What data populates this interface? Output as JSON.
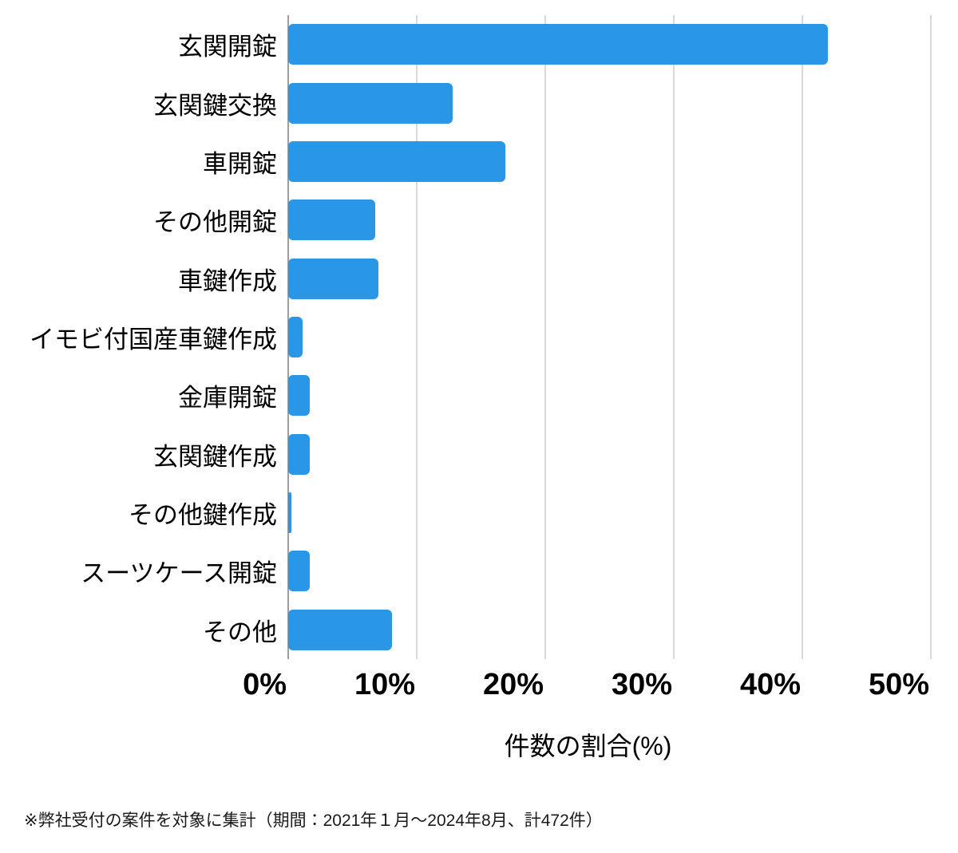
{
  "chart_data": {
    "type": "bar",
    "orientation": "horizontal",
    "categories": [
      "玄関開錠",
      "玄関鍵交換",
      "車開錠",
      "その他開錠",
      "車鍵作成",
      "イモビ付国産車鍵作成",
      "金庫開錠",
      "玄関鍵作成",
      "その他鍵作成",
      "スーツケース開錠",
      "その他"
    ],
    "values": [
      42.0,
      12.8,
      16.9,
      6.8,
      7.0,
      1.1,
      1.7,
      1.7,
      0.25,
      1.7,
      8.1
    ],
    "title": "",
    "xlabel": "件数の割合(%)",
    "ylabel": "",
    "x_ticks": [
      "0%",
      "10%",
      "20%",
      "30%",
      "40%",
      "50%"
    ],
    "x_tick_values": [
      0,
      10,
      20,
      30,
      40,
      50
    ],
    "xlim": [
      0,
      50
    ],
    "grid": true,
    "legend": false,
    "bar_color": "#2996e6"
  },
  "footnote": {
    "text": "※弊社受付の案件を対象に集計（期間：2021年１月〜2024年8月、計472件）"
  }
}
